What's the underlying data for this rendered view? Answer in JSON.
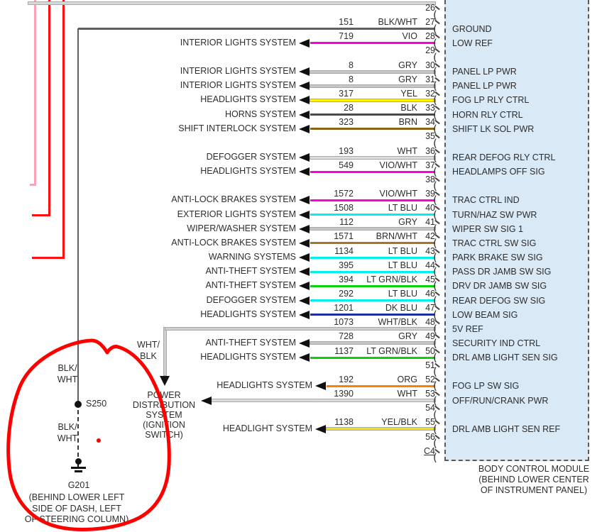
{
  "diagram": {
    "title": "Body Control Module connector C4 wiring (pins 26-56)",
    "connector_label_lines": [
      "BODY CONTROL MODULE",
      "(BEHIND LOWER CENTER",
      "OF INSTRUMENT PANEL)"
    ],
    "box_fill": "#d9e9f6",
    "annotation_color": "#ff0000",
    "left_stub_colors": [
      "#ffa0b8",
      "#fe1010",
      "#fe1010"
    ],
    "power_distribution_lines": [
      "POWER",
      "DISTRIBUTION",
      "SYSTEM",
      "(IGNITION",
      "SWITCH)"
    ],
    "wht_blk_label_lines": [
      "WHT/",
      "BLK"
    ],
    "ground": {
      "splice": "S250",
      "ground_id": "G201",
      "wire_color": "#5f5f5f",
      "wire_label_upper_lines": [
        "BLK/",
        "WHT"
      ],
      "wire_label_lower_lines": [
        "BLK/",
        "WHT"
      ],
      "location_lines": [
        "(BEHIND LOWER LEFT",
        "SIDE OF DASH, LEFT",
        "OF STEERING COLUMN)"
      ]
    },
    "pins": [
      {
        "pin": "26",
        "circuit": "",
        "color": "",
        "signal": "",
        "system": "",
        "route": "top",
        "hex": "#d8d8d8",
        "outlined": true
      },
      {
        "pin": "27",
        "circuit": "151",
        "color": "BLK/WHT",
        "signal": "GROUND",
        "system": "",
        "route": "ground",
        "hex": "#5f5f5f"
      },
      {
        "pin": "28",
        "circuit": "719",
        "color": "VIO",
        "signal": "LOW REF",
        "system": "INTERIOR LIGHTS SYSTEM",
        "route": "std",
        "hex": "#ff00dd"
      },
      {
        "pin": "29"
      },
      {
        "pin": "30",
        "circuit": "8",
        "color": "GRY",
        "signal": "PANEL LP PWR",
        "system": "INTERIOR LIGHTS SYSTEM",
        "route": "std",
        "hex": "#c6c6c6",
        "outlined": true
      },
      {
        "pin": "31",
        "circuit": "8",
        "color": "GRY",
        "signal": "PANEL LP PWR",
        "system": "INTERIOR LIGHTS SYSTEM",
        "route": "std",
        "hex": "#c6c6c6",
        "outlined": true
      },
      {
        "pin": "32",
        "circuit": "317",
        "color": "YEL",
        "signal": "FOG LP RLY CTRL",
        "system": "HEADLIGHTS SYSTEM",
        "route": "std",
        "hex": "#fff200",
        "outlined": true
      },
      {
        "pin": "33",
        "circuit": "28",
        "color": "BLK",
        "signal": "HORN RLY CTRL",
        "system": "HORNS SYSTEM",
        "route": "std",
        "hex": "#4a4a4a"
      },
      {
        "pin": "34",
        "circuit": "323",
        "color": "BRN",
        "signal": "SHIFT LK SOL PWR",
        "system": "SHIFT INTERLOCK SYSTEM",
        "route": "std",
        "hex": "#8a6414"
      },
      {
        "pin": "35"
      },
      {
        "pin": "36",
        "circuit": "193",
        "color": "WHT",
        "signal": "REAR DEFOG RLY CTRL",
        "system": "DEFOGGER SYSTEM",
        "route": "std",
        "hex": "#dcdcdc",
        "outlined": true
      },
      {
        "pin": "37",
        "circuit": "549",
        "color": "VIO/WHT",
        "signal": "HEADLAMPS OFF SIG",
        "system": "HEADLIGHTS SYSTEM",
        "route": "std",
        "hex": "#ff00dd"
      },
      {
        "pin": "38"
      },
      {
        "pin": "39",
        "circuit": "1572",
        "color": "VIO/WHT",
        "signal": "TRAC CTRL IND",
        "system": "ANTI-LOCK BRAKES SYSTEM",
        "route": "std",
        "hex": "#ff00dd"
      },
      {
        "pin": "40",
        "circuit": "1508",
        "color": "LT BLU",
        "signal": "TURN/HAZ SW PWR",
        "system": "EXTERIOR LIGHTS SYSTEM",
        "route": "std",
        "hex": "#00efef"
      },
      {
        "pin": "41",
        "circuit": "112",
        "color": "GRY",
        "signal": "WIPER SW SIG 1",
        "system": "WIPER/WASHER SYSTEM",
        "route": "std",
        "hex": "#c6c6c6",
        "outlined": true
      },
      {
        "pin": "42",
        "circuit": "1571",
        "color": "BRN/WHT",
        "signal": "TRAC CTRL SW SIG",
        "system": "ANTI-LOCK BRAKES SYSTEM",
        "route": "std",
        "hex": "#a2791c"
      },
      {
        "pin": "43",
        "circuit": "1134",
        "color": "LT BLU",
        "signal": "PARK BRAKE SW SIG",
        "system": "WARNING SYSTEMS",
        "route": "std",
        "hex": "#00efef"
      },
      {
        "pin": "44",
        "circuit": "395",
        "color": "LT BLU",
        "signal": "PASS DR JAMB SW SIG",
        "system": "ANTI-THEFT SYSTEM",
        "route": "std",
        "hex": "#00efef"
      },
      {
        "pin": "45",
        "circuit": "394",
        "color": "LT GRN/BLK",
        "signal": "DRV DR JAMB SW SIG",
        "system": "ANTI-THEFT SYSTEM",
        "route": "std",
        "hex": "#09d209"
      },
      {
        "pin": "46",
        "circuit": "292",
        "color": "LT BLU",
        "signal": "REAR DEFOG SW SIG",
        "system": "DEFOGGER SYSTEM",
        "route": "std",
        "hex": "#00efef"
      },
      {
        "pin": "47",
        "circuit": "1201",
        "color": "DK BLU",
        "signal": "LOW BEAM SIG",
        "system": "HEADLIGHTS SYSTEM",
        "route": "std",
        "hex": "#1c2f9e"
      },
      {
        "pin": "48",
        "circuit": "1073",
        "color": "WHT/BLK",
        "signal": "5V REF",
        "system": "",
        "route": "power48",
        "hex": "#cfcfcf",
        "outlined": true
      },
      {
        "pin": "49",
        "circuit": "728",
        "color": "GRY",
        "signal": "SECURITY IND CTRL",
        "system": "ANTI-THEFT SYSTEM",
        "route": "std",
        "hex": "#c6c6c6",
        "outlined": true
      },
      {
        "pin": "50",
        "circuit": "1137",
        "color": "LT GRN/BLK",
        "signal": "DRL AMB LIGHT SEN SIG",
        "system": "HEADLIGHTS SYSTEM",
        "route": "std",
        "hex": "#09d209"
      },
      {
        "pin": "51"
      },
      {
        "pin": "52",
        "circuit": "192",
        "color": "ORG",
        "signal": "FOG LP SW SIG",
        "system": "HEADLIGHTS SYSTEM",
        "route": "short",
        "hex": "#ff8000"
      },
      {
        "pin": "53",
        "circuit": "1390",
        "color": "WHT",
        "signal": "OFF/RUN/CRANK PWR",
        "system": "",
        "route": "power53",
        "hex": "#dcdcdc",
        "outlined": true
      },
      {
        "pin": "54"
      },
      {
        "pin": "55",
        "circuit": "1138",
        "color": "YEL/BLK",
        "signal": "DRL AMB LIGHT SEN REF",
        "system": "HEADLIGHT SYSTEM",
        "route": "short",
        "hex": "#f0e20a",
        "outlined": true
      },
      {
        "pin": "56"
      },
      {
        "pin": "C4",
        "underline": true
      }
    ]
  }
}
